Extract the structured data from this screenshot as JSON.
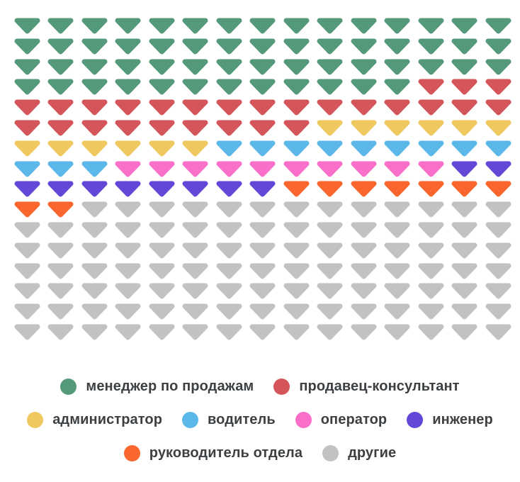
{
  "chart_data": {
    "type": "pictogram",
    "unit_icon": "triangle-down",
    "grid": {
      "columns": 15,
      "rows": 16,
      "total_units": 240
    },
    "fill_order": "row-major, left-to-right, top-to-bottom",
    "categories": [
      {
        "label": "менеджер по продажам",
        "color": "#55997B",
        "count": 57
      },
      {
        "label": "продавец-консультант",
        "color": "#D4555A",
        "count": 27
      },
      {
        "label": "администратор",
        "color": "#EFC95F",
        "count": 12
      },
      {
        "label": "водитель",
        "color": "#5DB8EA",
        "count": 12
      },
      {
        "label": "оператор",
        "color": "#FA6FC9",
        "count": 10
      },
      {
        "label": "инженер",
        "color": "#6348D8",
        "count": 10
      },
      {
        "label": "руководитель отдела",
        "color": "#FA662D",
        "count": 9
      },
      {
        "label": "другие",
        "color": "#C2C2C2",
        "count": 103
      }
    ],
    "legend": {
      "position": "bottom",
      "marker": "circle",
      "rows": [
        [
          0,
          1
        ],
        [
          2,
          3,
          4,
          5
        ],
        [
          6,
          7
        ]
      ]
    }
  },
  "colors": {
    "background": "#FFFFFF",
    "legend_text": "#3C4043"
  }
}
